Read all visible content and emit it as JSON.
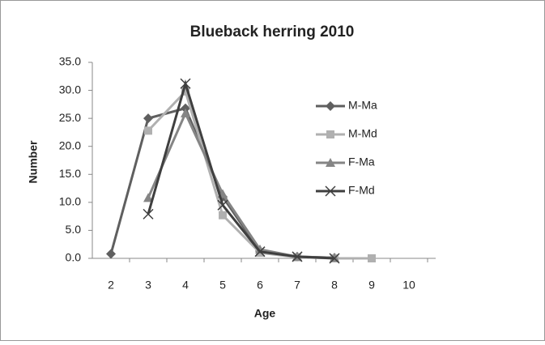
{
  "chart_data": {
    "type": "line",
    "title": "Blueback herring 2010",
    "x_label": "Age",
    "y_label": "Number",
    "categories": [
      "2",
      "3",
      "4",
      "5",
      "6",
      "7",
      "8",
      "9",
      "10"
    ],
    "ylim": [
      0,
      35
    ],
    "yticks": [
      {
        "value": 0,
        "label": "0.0"
      },
      {
        "value": 5,
        "label": "5.0"
      },
      {
        "value": 10,
        "label": "10.0"
      },
      {
        "value": 15,
        "label": "15.0"
      },
      {
        "value": 20,
        "label": "20.0"
      },
      {
        "value": 25,
        "label": "25.0"
      },
      {
        "value": 30,
        "label": "30.0"
      },
      {
        "value": 35,
        "label": "35.0"
      }
    ],
    "grid": false,
    "legend": "right",
    "series": [
      {
        "name": "M-Ma",
        "color": "#5f5f5f",
        "marker": "diamond",
        "values": [
          0.8,
          25.0,
          26.8,
          11.0,
          1.3,
          0.3,
          0.1,
          null,
          null
        ]
      },
      {
        "name": "M-Md",
        "color": "#b0b0b0",
        "marker": "square",
        "values": [
          null,
          22.8,
          29.8,
          7.7,
          1.0,
          0.2,
          0.0,
          0.0,
          null
        ]
      },
      {
        "name": "F-Ma",
        "color": "#858585",
        "marker": "triangle",
        "values": [
          null,
          10.8,
          25.9,
          11.5,
          1.6,
          0.3,
          0.1,
          null,
          null
        ]
      },
      {
        "name": "F-Md",
        "color": "#3f3f3f",
        "marker": "x",
        "values": [
          null,
          7.9,
          31.2,
          9.5,
          1.2,
          0.3,
          0.0,
          null,
          null
        ]
      }
    ]
  }
}
